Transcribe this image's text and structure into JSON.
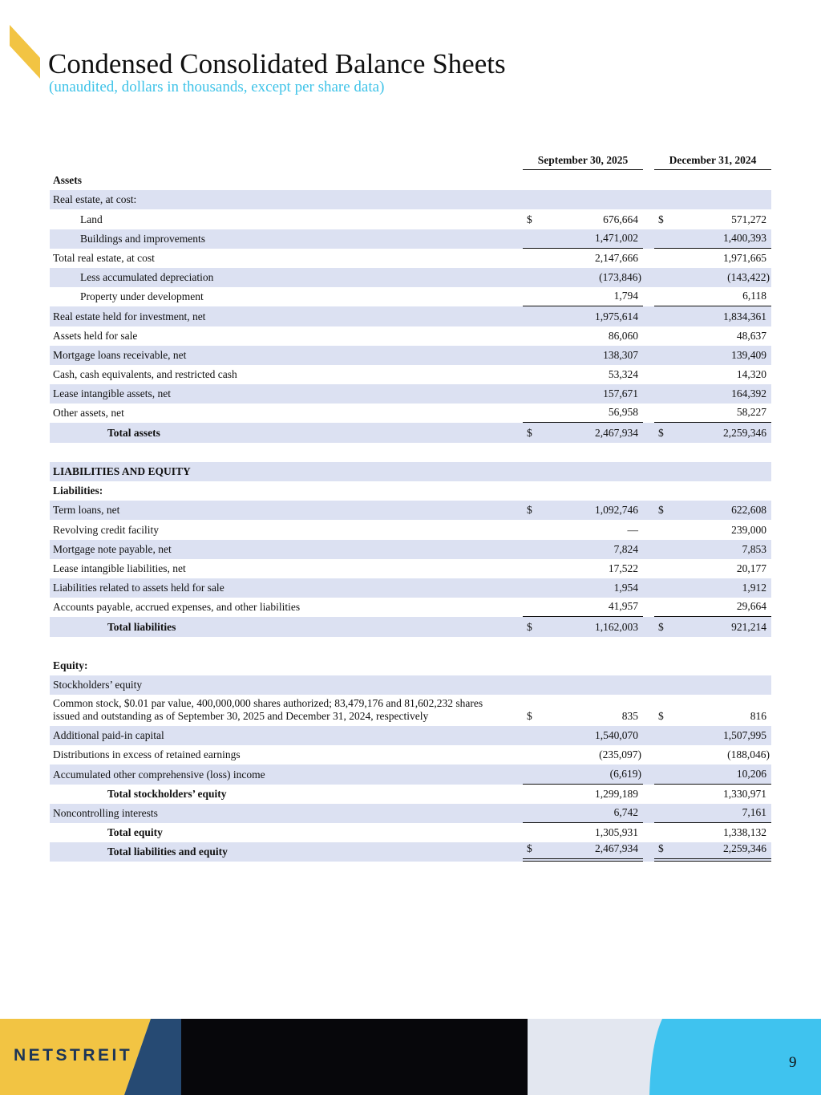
{
  "header": {
    "title": "Condensed Consolidated Balance Sheets",
    "subtitle": "(unaudited, dollars in thousands, except per share data)"
  },
  "table": {
    "columns": [
      "September 30, 2025",
      "December 31, 2024"
    ],
    "rows": [
      {
        "label": "Assets"
      },
      {
        "label": "Real estate, at cost:"
      },
      {
        "label": "Land",
        "cells": [
          {
            "currency": "$",
            "amount": "676,664"
          },
          {
            "currency": "$",
            "amount": "571,272"
          }
        ]
      },
      {
        "label": "Buildings and improvements",
        "cells": [
          {
            "amount": "1,471,002"
          },
          {
            "amount": "1,400,393"
          }
        ]
      },
      {
        "label": "Total real estate, at cost",
        "cells": [
          {
            "amount": "2,147,666"
          },
          {
            "amount": "1,971,665"
          }
        ]
      },
      {
        "label": "Less accumulated depreciation",
        "cells": [
          {
            "amount": "(173,846)"
          },
          {
            "amount": "(143,422)"
          }
        ]
      },
      {
        "label": "Property under development",
        "cells": [
          {
            "amount": "1,794"
          },
          {
            "amount": "6,118"
          }
        ]
      },
      {
        "label": "Real estate held for investment, net",
        "cells": [
          {
            "amount": "1,975,614"
          },
          {
            "amount": "1,834,361"
          }
        ]
      },
      {
        "label": "Assets held for sale",
        "cells": [
          {
            "amount": "86,060"
          },
          {
            "amount": "48,637"
          }
        ]
      },
      {
        "label": "Mortgage loans receivable, net",
        "cells": [
          {
            "amount": "138,307"
          },
          {
            "amount": "139,409"
          }
        ]
      },
      {
        "label": "Cash, cash equivalents, and restricted cash",
        "cells": [
          {
            "amount": "53,324"
          },
          {
            "amount": "14,320"
          }
        ]
      },
      {
        "label": "Lease intangible assets, net",
        "cells": [
          {
            "amount": "157,671"
          },
          {
            "amount": "164,392"
          }
        ]
      },
      {
        "label": "Other assets, net",
        "cells": [
          {
            "amount": "56,958"
          },
          {
            "amount": "58,227"
          }
        ]
      },
      {
        "label": "Total assets",
        "cells": [
          {
            "currency": "$",
            "amount": "2,467,934"
          },
          {
            "currency": "$",
            "amount": "2,259,346"
          }
        ]
      },
      {
        "label": "LIABILITIES AND EQUITY"
      },
      {
        "label": "Liabilities:"
      },
      {
        "label": "Term loans, net",
        "cells": [
          {
            "currency": "$",
            "amount": "1,092,746"
          },
          {
            "currency": "$",
            "amount": "622,608"
          }
        ]
      },
      {
        "label": "Revolving credit facility",
        "cells": [
          {
            "amount": "—"
          },
          {
            "amount": "239,000"
          }
        ]
      },
      {
        "label": "Mortgage note payable, net",
        "cells": [
          {
            "amount": "7,824"
          },
          {
            "amount": "7,853"
          }
        ]
      },
      {
        "label": "Lease intangible liabilities, net",
        "cells": [
          {
            "amount": "17,522"
          },
          {
            "amount": "20,177"
          }
        ]
      },
      {
        "label": "Liabilities related to assets held for sale",
        "cells": [
          {
            "amount": "1,954"
          },
          {
            "amount": "1,912"
          }
        ]
      },
      {
        "label": "Accounts payable, accrued expenses, and other liabilities",
        "cells": [
          {
            "amount": "41,957"
          },
          {
            "amount": "29,664"
          }
        ]
      },
      {
        "label": "Total liabilities",
        "cells": [
          {
            "currency": "$",
            "amount": "1,162,003"
          },
          {
            "currency": "$",
            "amount": "921,214"
          }
        ]
      },
      {
        "label": "Equity:"
      },
      {
        "label": "Stockholders’ equity"
      },
      {
        "label": "Common stock, $0.01 par value, 400,000,000 shares authorized; 83,479,176 and 81,602,232 shares issued and outstanding as of September 30, 2025 and December 31, 2024, respectively",
        "cells": [
          {
            "currency": "$",
            "amount": "835"
          },
          {
            "currency": "$",
            "amount": "816"
          }
        ]
      },
      {
        "label": "Additional paid-in capital",
        "cells": [
          {
            "amount": "1,540,070"
          },
          {
            "amount": "1,507,995"
          }
        ]
      },
      {
        "label": "Distributions in excess of retained earnings",
        "cells": [
          {
            "amount": "(235,097)"
          },
          {
            "amount": "(188,046)"
          }
        ]
      },
      {
        "label": "Accumulated other comprehensive (loss) income",
        "cells": [
          {
            "amount": "(6,619)"
          },
          {
            "amount": "10,206"
          }
        ]
      },
      {
        "label": "Total stockholders’ equity",
        "cells": [
          {
            "amount": "1,299,189"
          },
          {
            "amount": "1,330,971"
          }
        ]
      },
      {
        "label": "Noncontrolling interests",
        "cells": [
          {
            "amount": "6,742"
          },
          {
            "amount": "7,161"
          }
        ]
      },
      {
        "label": "Total equity",
        "cells": [
          {
            "amount": "1,305,931"
          },
          {
            "amount": "1,338,132"
          }
        ]
      },
      {
        "label": "Total liabilities and equity",
        "cells": [
          {
            "currency": "$",
            "amount": "2,467,934"
          },
          {
            "currency": "$",
            "amount": "2,259,346"
          }
        ]
      }
    ]
  },
  "footer": {
    "brand": "NETSTREIT",
    "page": "9"
  }
}
